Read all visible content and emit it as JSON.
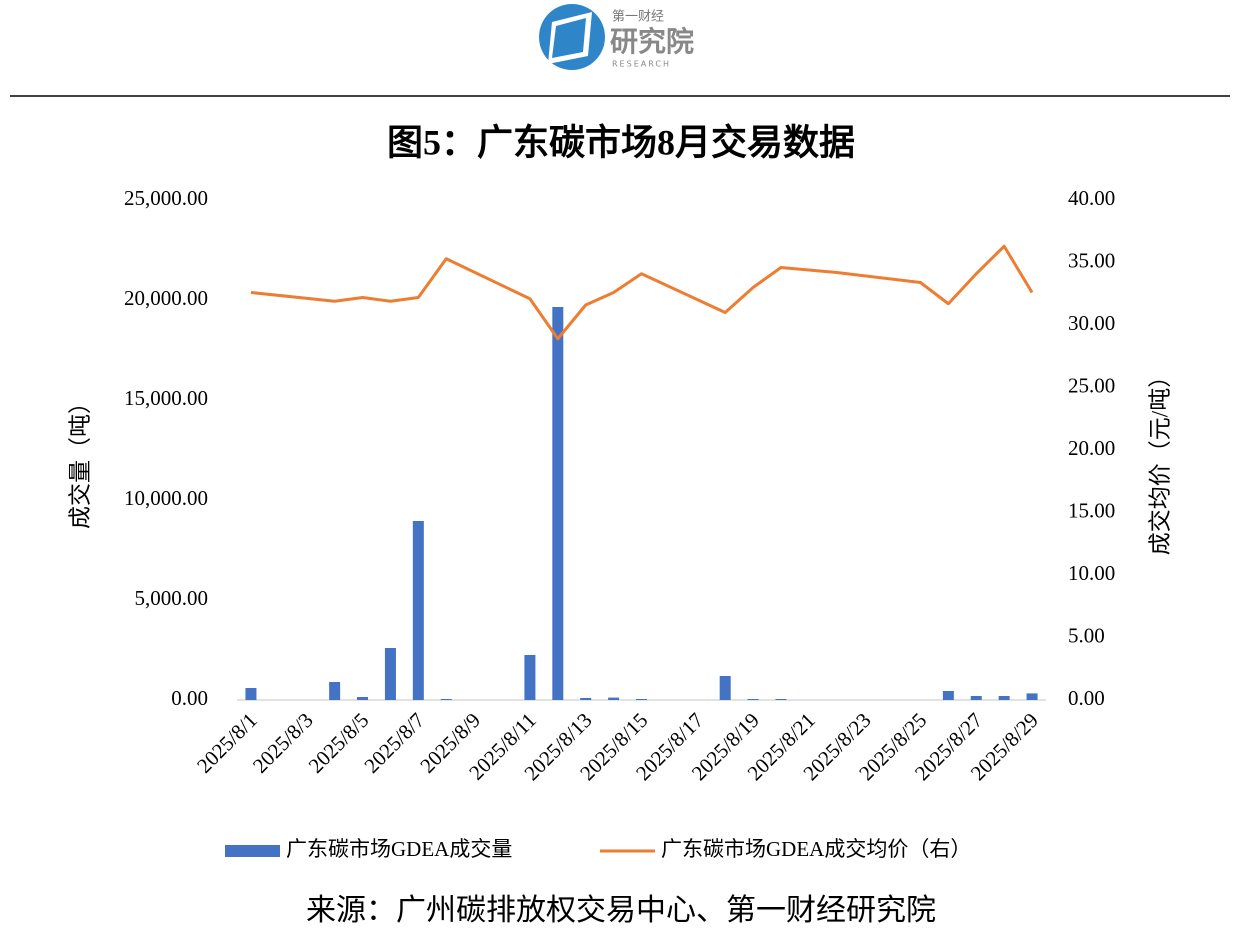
{
  "header": {
    "logo_top": "第一财经",
    "logo_main": "研究院",
    "logo_sub": "RESEARCH"
  },
  "chart_data": {
    "type": "bar_line",
    "title": "图5：广东碳市场8月交易数据",
    "y_label": "成交量（吨）",
    "y2_label": "成交均价（元/吨）",
    "categories": [
      "2025/8/1",
      null,
      "2025/8/3",
      null,
      "2025/8/5",
      null,
      "2025/8/7",
      null,
      "2025/8/9",
      null,
      "2025/8/11",
      null,
      "2025/8/13",
      null,
      "2025/8/15",
      null,
      "2025/8/17",
      null,
      "2025/8/19",
      null,
      "2025/8/21",
      null,
      "2025/8/23",
      null,
      "2025/8/25",
      null,
      "2025/8/27",
      null,
      "2025/8/29"
    ],
    "series": [
      {
        "name": "广东碳市场GDEA成交量",
        "type": "bar",
        "color": "#4472c4",
        "values": [
          600,
          null,
          null,
          900,
          150,
          2600,
          8950,
          50,
          null,
          null,
          2250,
          19650,
          100,
          120,
          50,
          null,
          null,
          1200,
          50,
          50,
          null,
          null,
          null,
          null,
          null,
          450,
          200,
          200,
          330
        ]
      },
      {
        "name": "广东碳市场GDEA成交均价（右）",
        "type": "line",
        "axis": "y2",
        "color": "#ed7d31",
        "span_gaps": true,
        "values": [
          32.6,
          null,
          null,
          31.9,
          32.2,
          31.9,
          32.2,
          35.3,
          null,
          null,
          32.1,
          28.9,
          31.6,
          32.6,
          34.1,
          null,
          null,
          31.0,
          33.0,
          34.6,
          34.4,
          34.2,
          null,
          null,
          33.4,
          31.7,
          34.1,
          36.3,
          32.6
        ]
      }
    ],
    "ylim": [
      0,
      25000
    ],
    "yticks": [
      {
        "value": 0,
        "label": "0.00"
      },
      {
        "value": 5000,
        "label": "5,000.00"
      },
      {
        "value": 10000,
        "label": "10,000.00"
      },
      {
        "value": 15000,
        "label": "15,000.00"
      },
      {
        "value": 20000,
        "label": "20,000.00"
      },
      {
        "value": 25000,
        "label": "25,000.00"
      }
    ],
    "y2lim": [
      0,
      40
    ],
    "y2ticks": [
      {
        "value": 0,
        "label": "0.00"
      },
      {
        "value": 5,
        "label": "5.00"
      },
      {
        "value": 10,
        "label": "10.00"
      },
      {
        "value": 15,
        "label": "15.00"
      },
      {
        "value": 20,
        "label": "20.00"
      },
      {
        "value": 25,
        "label": "25.00"
      },
      {
        "value": 30,
        "label": "30.00"
      },
      {
        "value": 35,
        "label": "35.00"
      },
      {
        "value": 40,
        "label": "40.00"
      }
    ],
    "grid": false,
    "source": "来源：广州碳排放权交易中心、第一财经研究院"
  }
}
